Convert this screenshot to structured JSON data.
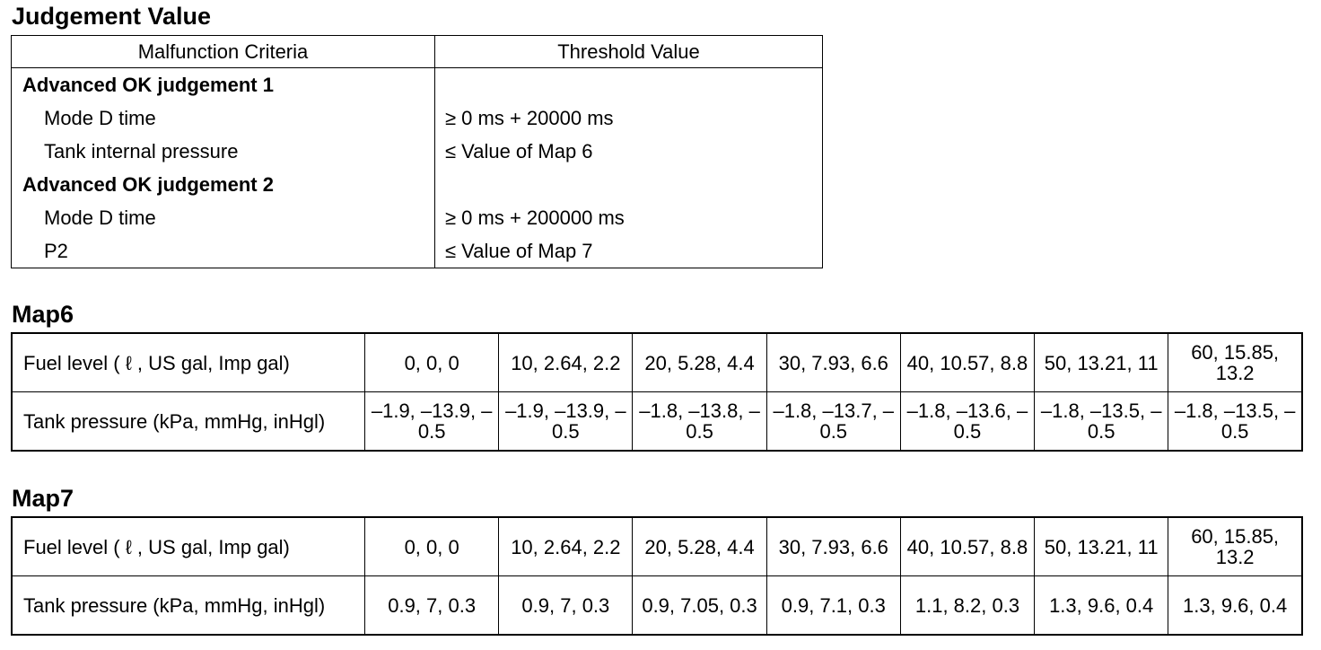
{
  "judgement": {
    "title": "Judgement Value",
    "headers": [
      "Malfunction Criteria",
      "Threshold Value"
    ],
    "rows": [
      {
        "criteria": "Advanced OK judgement 1",
        "threshold": "",
        "group": true
      },
      {
        "criteria": "Mode D time",
        "threshold": "≥ 0 ms + 20000 ms",
        "group": false
      },
      {
        "criteria": "Tank internal pressure",
        "threshold": "≤ Value of Map 6",
        "group": false
      },
      {
        "criteria": "Advanced OK judgement 2",
        "threshold": "",
        "group": true
      },
      {
        "criteria": "Mode D time",
        "threshold": "≥ 0 ms + 200000 ms",
        "group": false
      },
      {
        "criteria": "P2",
        "threshold": "≤ Value of Map 7",
        "group": false
      }
    ]
  },
  "map6": {
    "title": "Map6",
    "rows": [
      {
        "label": "Fuel level ( ℓ , US gal, Imp gal)",
        "values": [
          "0, 0, 0",
          "10, 2.64, 2.2",
          "20, 5.28, 4.4",
          "30, 7.93, 6.6",
          "40, 10.57, 8.8",
          "50, 13.21, 11",
          "60, 15.85, 13.2"
        ]
      },
      {
        "label": "Tank pressure (kPa, mmHg, inHgl)",
        "values": [
          "–1.9, –13.9, –0.5",
          "–1.9, –13.9, –0.5",
          "–1.8, –13.8, –0.5",
          "–1.8, –13.7, –0.5",
          "–1.8, –13.6, –0.5",
          "–1.8, –13.5, –0.5",
          "–1.8, –13.5, –0.5"
        ]
      }
    ]
  },
  "map7": {
    "title": "Map7",
    "rows": [
      {
        "label": "Fuel level ( ℓ , US gal, Imp gal)",
        "values": [
          "0, 0, 0",
          "10, 2.64, 2.2",
          "20, 5.28, 4.4",
          "30, 7.93, 6.6",
          "40, 10.57, 8.8",
          "50, 13.21, 11",
          "60, 15.85, 13.2"
        ]
      },
      {
        "label": "Tank pressure (kPa, mmHg, inHgl)",
        "values": [
          "0.9, 7, 0.3",
          "0.9, 7, 0.3",
          "0.9, 7.05, 0.3",
          "0.9, 7.1, 0.3",
          "1.1, 8.2, 0.3",
          "1.3, 9.6, 0.4",
          "1.3, 9.6, 0.4"
        ]
      }
    ]
  }
}
